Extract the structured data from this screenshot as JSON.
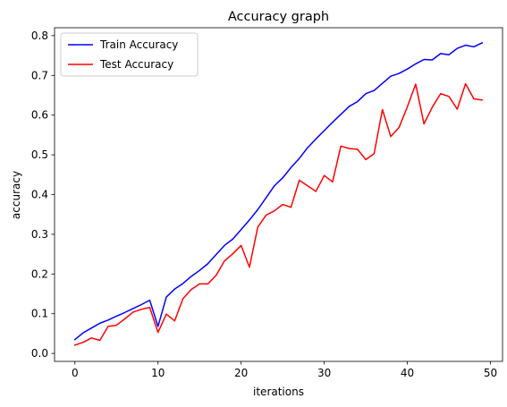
{
  "chart_data": {
    "type": "line",
    "title": "Accuracy graph",
    "xlabel": "iterations",
    "ylabel": "accuracy",
    "xlim": [
      -2.45,
      51.45
    ],
    "ylim": [
      -0.02,
      0.82
    ],
    "xticks": [
      0,
      10,
      20,
      30,
      40,
      50
    ],
    "yticks": [
      0.0,
      0.1,
      0.2,
      0.3,
      0.4,
      0.5,
      0.6,
      0.7,
      0.8
    ],
    "grid": false,
    "legend_position": "top-left",
    "x": [
      0,
      1,
      2,
      3,
      4,
      5,
      6,
      7,
      8,
      9,
      10,
      11,
      12,
      13,
      14,
      15,
      16,
      17,
      18,
      19,
      20,
      21,
      22,
      23,
      24,
      25,
      26,
      27,
      28,
      29,
      30,
      31,
      32,
      33,
      34,
      35,
      36,
      37,
      38,
      39,
      40,
      41,
      42,
      43,
      44,
      45,
      46,
      47,
      48,
      49
    ],
    "series": [
      {
        "name": "Train Accuracy",
        "color": "#0000ff",
        "values": [
          0.035,
          0.052,
          0.064,
          0.076,
          0.084,
          0.094,
          0.103,
          0.113,
          0.123,
          0.134,
          0.068,
          0.142,
          0.162,
          0.176,
          0.194,
          0.209,
          0.226,
          0.249,
          0.272,
          0.288,
          0.312,
          0.336,
          0.362,
          0.392,
          0.422,
          0.442,
          0.468,
          0.491,
          0.518,
          0.54,
          0.561,
          0.582,
          0.602,
          0.622,
          0.634,
          0.654,
          0.662,
          0.68,
          0.698,
          0.705,
          0.716,
          0.729,
          0.74,
          0.739,
          0.755,
          0.752,
          0.768,
          0.776,
          0.772,
          0.782
        ]
      },
      {
        "name": "Test Accuracy",
        "color": "#ff0000",
        "values": [
          0.021,
          0.028,
          0.039,
          0.033,
          0.068,
          0.071,
          0.087,
          0.104,
          0.111,
          0.116,
          0.053,
          0.099,
          0.082,
          0.138,
          0.161,
          0.175,
          0.175,
          0.197,
          0.233,
          0.251,
          0.272,
          0.217,
          0.318,
          0.348,
          0.359,
          0.375,
          0.368,
          0.436,
          0.422,
          0.408,
          0.448,
          0.432,
          0.522,
          0.516,
          0.514,
          0.488,
          0.503,
          0.614,
          0.546,
          0.569,
          0.621,
          0.678,
          0.578,
          0.62,
          0.654,
          0.647,
          0.615,
          0.679,
          0.641,
          0.638
        ]
      }
    ]
  }
}
